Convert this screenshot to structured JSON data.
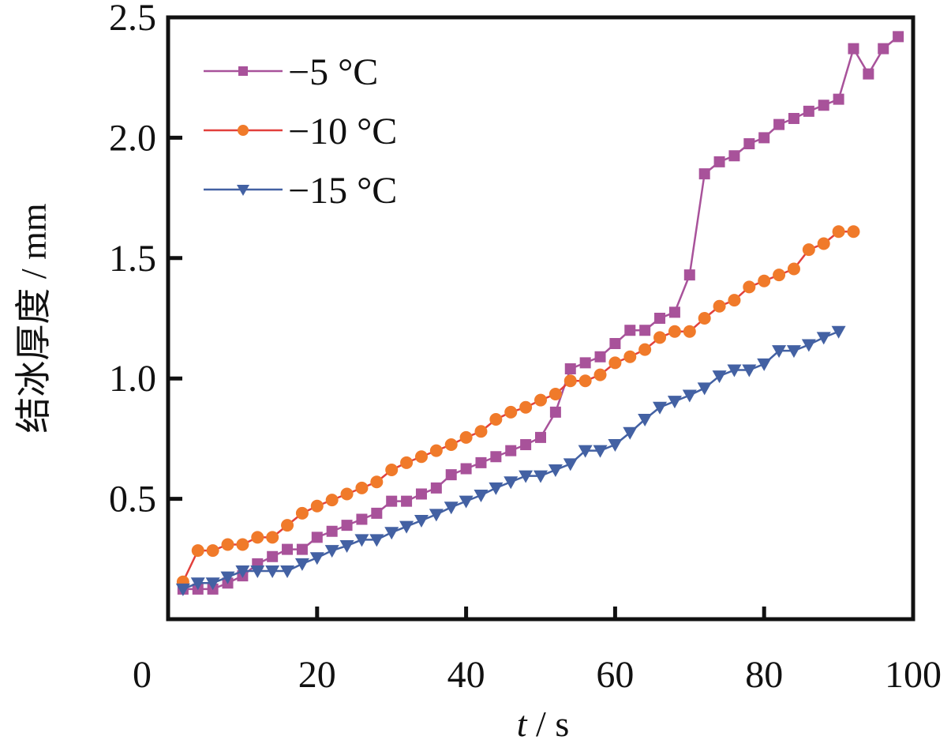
{
  "chart_data": {
    "type": "line",
    "title": "",
    "xlabel_italic": "t",
    "xlabel_rest": " / s",
    "ylabel": "结冰厚度 / mm",
    "xlim": [
      0,
      100
    ],
    "ylim": [
      0,
      2.5
    ],
    "xticks": [
      0,
      20,
      40,
      60,
      80,
      100
    ],
    "yticks": [
      0.5,
      1.0,
      1.5,
      2.0,
      2.5
    ],
    "ytick_labels": [
      "0.5",
      "1.0",
      "1.5",
      "2.0",
      "2.5"
    ],
    "xtick_labels": [
      "0",
      "20",
      "40",
      "60",
      "80",
      "100"
    ],
    "grid": false,
    "legend_position": "top-left",
    "series": [
      {
        "name": "−5 °C",
        "marker": "square",
        "color": "#a8529a",
        "line_color": "#a8529a",
        "x": [
          2,
          4,
          6,
          8,
          10,
          12,
          14,
          16,
          18,
          20,
          22,
          24,
          26,
          28,
          30,
          32,
          34,
          36,
          38,
          40,
          42,
          44,
          46,
          48,
          50,
          52,
          54,
          56,
          58,
          60,
          62,
          64,
          66,
          68,
          70,
          72,
          74,
          76,
          78,
          80,
          82,
          84,
          86,
          88,
          90,
          92,
          94,
          96,
          98
        ],
        "y": [
          0.125,
          0.125,
          0.125,
          0.15,
          0.18,
          0.23,
          0.26,
          0.29,
          0.29,
          0.34,
          0.365,
          0.39,
          0.415,
          0.44,
          0.49,
          0.49,
          0.52,
          0.545,
          0.6,
          0.625,
          0.65,
          0.675,
          0.7,
          0.725,
          0.755,
          0.86,
          1.04,
          1.065,
          1.09,
          1.145,
          1.2,
          1.2,
          1.25,
          1.275,
          1.43,
          1.85,
          1.9,
          1.925,
          1.975,
          2.0,
          2.055,
          2.08,
          2.11,
          2.135,
          2.16,
          2.37,
          2.265,
          2.37,
          2.42
        ]
      },
      {
        "name": "−10 °C",
        "marker": "circle",
        "color": "#f07a2a",
        "line_color": "#e2403c",
        "x": [
          2,
          4,
          6,
          8,
          10,
          12,
          14,
          16,
          18,
          20,
          22,
          24,
          26,
          28,
          30,
          32,
          34,
          36,
          38,
          40,
          42,
          44,
          46,
          48,
          50,
          52,
          54,
          56,
          58,
          60,
          62,
          64,
          66,
          68,
          70,
          72,
          74,
          76,
          78,
          80,
          82,
          84,
          86,
          88,
          90,
          92
        ],
        "y": [
          0.155,
          0.285,
          0.285,
          0.31,
          0.31,
          0.34,
          0.34,
          0.39,
          0.44,
          0.47,
          0.495,
          0.52,
          0.545,
          0.57,
          0.62,
          0.65,
          0.675,
          0.7,
          0.725,
          0.755,
          0.78,
          0.83,
          0.86,
          0.88,
          0.91,
          0.935,
          0.99,
          0.99,
          1.015,
          1.065,
          1.09,
          1.12,
          1.17,
          1.195,
          1.195,
          1.25,
          1.3,
          1.325,
          1.38,
          1.405,
          1.43,
          1.455,
          1.535,
          1.56,
          1.61,
          1.61
        ]
      },
      {
        "name": "−15 °C",
        "marker": "triangle-down",
        "color": "#4361a3",
        "line_color": "#4361a3",
        "x": [
          2,
          4,
          6,
          8,
          10,
          12,
          14,
          16,
          18,
          20,
          22,
          24,
          26,
          28,
          30,
          32,
          34,
          36,
          38,
          40,
          42,
          44,
          46,
          48,
          50,
          52,
          54,
          56,
          58,
          60,
          62,
          64,
          66,
          68,
          70,
          72,
          74,
          76,
          78,
          80,
          82,
          84,
          86,
          88,
          90
        ],
        "y": [
          0.125,
          0.15,
          0.15,
          0.175,
          0.2,
          0.2,
          0.2,
          0.2,
          0.23,
          0.255,
          0.285,
          0.305,
          0.33,
          0.33,
          0.36,
          0.385,
          0.41,
          0.435,
          0.465,
          0.49,
          0.515,
          0.545,
          0.57,
          0.595,
          0.595,
          0.62,
          0.645,
          0.7,
          0.7,
          0.725,
          0.775,
          0.83,
          0.88,
          0.905,
          0.93,
          0.96,
          1.01,
          1.035,
          1.035,
          1.06,
          1.115,
          1.115,
          1.14,
          1.17,
          1.195
        ]
      }
    ]
  }
}
